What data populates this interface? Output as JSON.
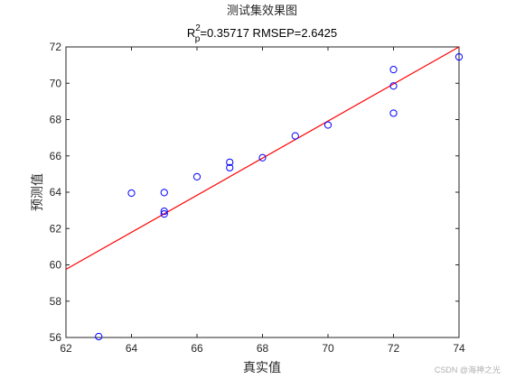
{
  "chart_data": {
    "type": "scatter",
    "title": "测试集效果图",
    "subtitle": {
      "r_base": "R",
      "r_sup": "2",
      "r_sub": "p",
      "rest": "=0.35717  RMSEP=2.6425"
    },
    "xlabel": "真实值",
    "ylabel": "预测值",
    "xlim": [
      62,
      74
    ],
    "ylim": [
      56,
      72
    ],
    "xticks": [
      62,
      64,
      66,
      68,
      70,
      72,
      74
    ],
    "yticks": [
      56,
      58,
      60,
      62,
      64,
      66,
      68,
      70,
      72
    ],
    "grid": false,
    "points": [
      {
        "x": 63,
        "y": 56.05
      },
      {
        "x": 64,
        "y": 63.95
      },
      {
        "x": 65,
        "y": 63.98
      },
      {
        "x": 65,
        "y": 62.95
      },
      {
        "x": 65,
        "y": 62.8
      },
      {
        "x": 66,
        "y": 64.85
      },
      {
        "x": 67,
        "y": 65.65
      },
      {
        "x": 67,
        "y": 65.35
      },
      {
        "x": 68,
        "y": 65.9
      },
      {
        "x": 69,
        "y": 67.1
      },
      {
        "x": 70,
        "y": 67.7
      },
      {
        "x": 72,
        "y": 70.75
      },
      {
        "x": 72,
        "y": 69.85
      },
      {
        "x": 72,
        "y": 68.35
      },
      {
        "x": 74,
        "y": 71.45
      }
    ],
    "fit_line": {
      "x": [
        62,
        74
      ],
      "y": [
        59.75,
        72.0
      ]
    },
    "colors": {
      "points": "#0000ff",
      "fit_line": "#ff0000",
      "axes": "#262626"
    }
  },
  "watermark": "CSDN @海神之光"
}
